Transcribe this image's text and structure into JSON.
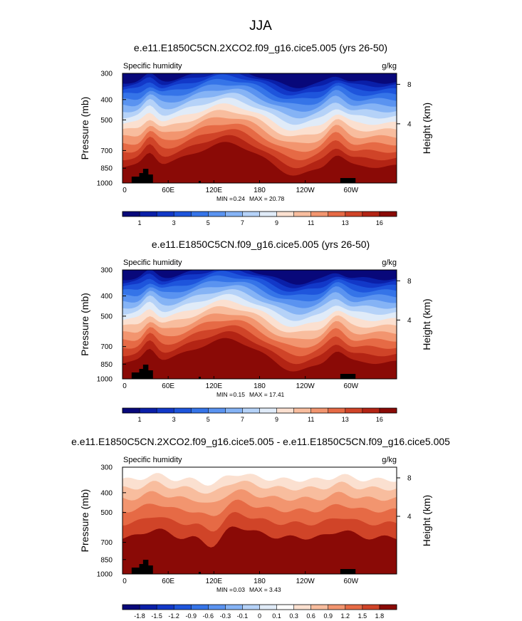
{
  "figure": {
    "title": "JJA"
  },
  "chart_data": [
    {
      "type": "heatmap",
      "title": "e.e11.E1850C5CN.2XCO2.f09_g16.cice5.005 (yrs 26-50)",
      "variable": "Specific humidity",
      "units": "g/kg",
      "xlabel": "",
      "ylabel": "Pressure (mb)",
      "y2label": "Height (km)",
      "x_ticks": [
        "0",
        "60E",
        "120E",
        "180",
        "120W",
        "60W"
      ],
      "x_tick_values": [
        0,
        60,
        120,
        180,
        240,
        300
      ],
      "xlim": [
        0,
        360
      ],
      "y_ticks": [
        "300",
        "400",
        "500",
        "700",
        "850",
        "1000"
      ],
      "y_tick_values": [
        300,
        400,
        500,
        700,
        850,
        1000
      ],
      "ylim": [
        1000,
        300
      ],
      "y2_ticks": [
        "8",
        "4"
      ],
      "y2_tick_values": [
        8,
        4
      ],
      "min_label": "MIN =",
      "min": "0.24",
      "max_label": "MAX =",
      "max": "20.78",
      "colorbar_labels": [
        "1",
        "3",
        "5",
        "7",
        "9",
        "11",
        "13",
        "16"
      ],
      "colorbar_colors": [
        "#08087a",
        "#0a1fa8",
        "#1238c8",
        "#1e55dc",
        "#3574e8",
        "#5a93f0",
        "#85b3f5",
        "#b5d2f8",
        "#e0ebf8",
        "#fbe0d0",
        "#f8bd9e",
        "#f2956f",
        "#e66a45",
        "#d04428",
        "#b32414",
        "#8a0a06"
      ]
    },
    {
      "type": "heatmap",
      "title": "e.e11.E1850C5CN.f09_g16.cice5.005 (yrs 26-50)",
      "variable": "Specific humidity",
      "units": "g/kg",
      "xlabel": "",
      "ylabel": "Pressure (mb)",
      "y2label": "Height (km)",
      "x_ticks": [
        "0",
        "60E",
        "120E",
        "180",
        "120W",
        "60W"
      ],
      "x_tick_values": [
        0,
        60,
        120,
        180,
        240,
        300
      ],
      "xlim": [
        0,
        360
      ],
      "y_ticks": [
        "300",
        "400",
        "500",
        "700",
        "850",
        "1000"
      ],
      "y_tick_values": [
        300,
        400,
        500,
        700,
        850,
        1000
      ],
      "ylim": [
        1000,
        300
      ],
      "y2_ticks": [
        "8",
        "4"
      ],
      "y2_tick_values": [
        8,
        4
      ],
      "min_label": "MIN =",
      "min": "0.15",
      "max_label": "MAX =",
      "max": "17.41",
      "colorbar_labels": [
        "1",
        "3",
        "5",
        "7",
        "9",
        "11",
        "13",
        "16"
      ],
      "colorbar_colors": [
        "#08087a",
        "#0a1fa8",
        "#1238c8",
        "#1e55dc",
        "#3574e8",
        "#5a93f0",
        "#85b3f5",
        "#b5d2f8",
        "#e0ebf8",
        "#fbe0d0",
        "#f8bd9e",
        "#f2956f",
        "#e66a45",
        "#d04428",
        "#b32414",
        "#8a0a06"
      ]
    },
    {
      "type": "heatmap",
      "title": "e.e11.E1850C5CN.2XCO2.f09_g16.cice5.005 - e.e11.E1850C5CN.f09_g16.cice5.005",
      "variable": "Specific humidity",
      "units": "g/kg",
      "xlabel": "",
      "ylabel": "Pressure (mb)",
      "y2label": "Height (km)",
      "x_ticks": [
        "0",
        "60E",
        "120E",
        "180",
        "120W",
        "60W"
      ],
      "x_tick_values": [
        0,
        60,
        120,
        180,
        240,
        300
      ],
      "xlim": [
        0,
        360
      ],
      "y_ticks": [
        "300",
        "400",
        "500",
        "700",
        "850",
        "1000"
      ],
      "y_tick_values": [
        300,
        400,
        500,
        700,
        850,
        1000
      ],
      "ylim": [
        1000,
        300
      ],
      "y2_ticks": [
        "8",
        "4"
      ],
      "y2_tick_values": [
        8,
        4
      ],
      "min_label": "MIN =",
      "min": "0.03",
      "max_label": "MAX =",
      "max": "3.43",
      "colorbar_labels": [
        "-1.8",
        "-1.5",
        "-1.2",
        "-0.9",
        "-0.6",
        "-0.3",
        "-0.1",
        "0",
        "0.1",
        "0.3",
        "0.6",
        "0.9",
        "1.2",
        "1.5",
        "1.8"
      ],
      "colorbar_colors": [
        "#08087a",
        "#0a1fa8",
        "#1238c8",
        "#1e55dc",
        "#3574e8",
        "#5a93f0",
        "#85b3f5",
        "#b5d2f8",
        "#e0ebf8",
        "#ffffff",
        "#fbe0d0",
        "#f8bd9e",
        "#f2956f",
        "#e66a45",
        "#d04428",
        "#8a0a06"
      ]
    }
  ]
}
